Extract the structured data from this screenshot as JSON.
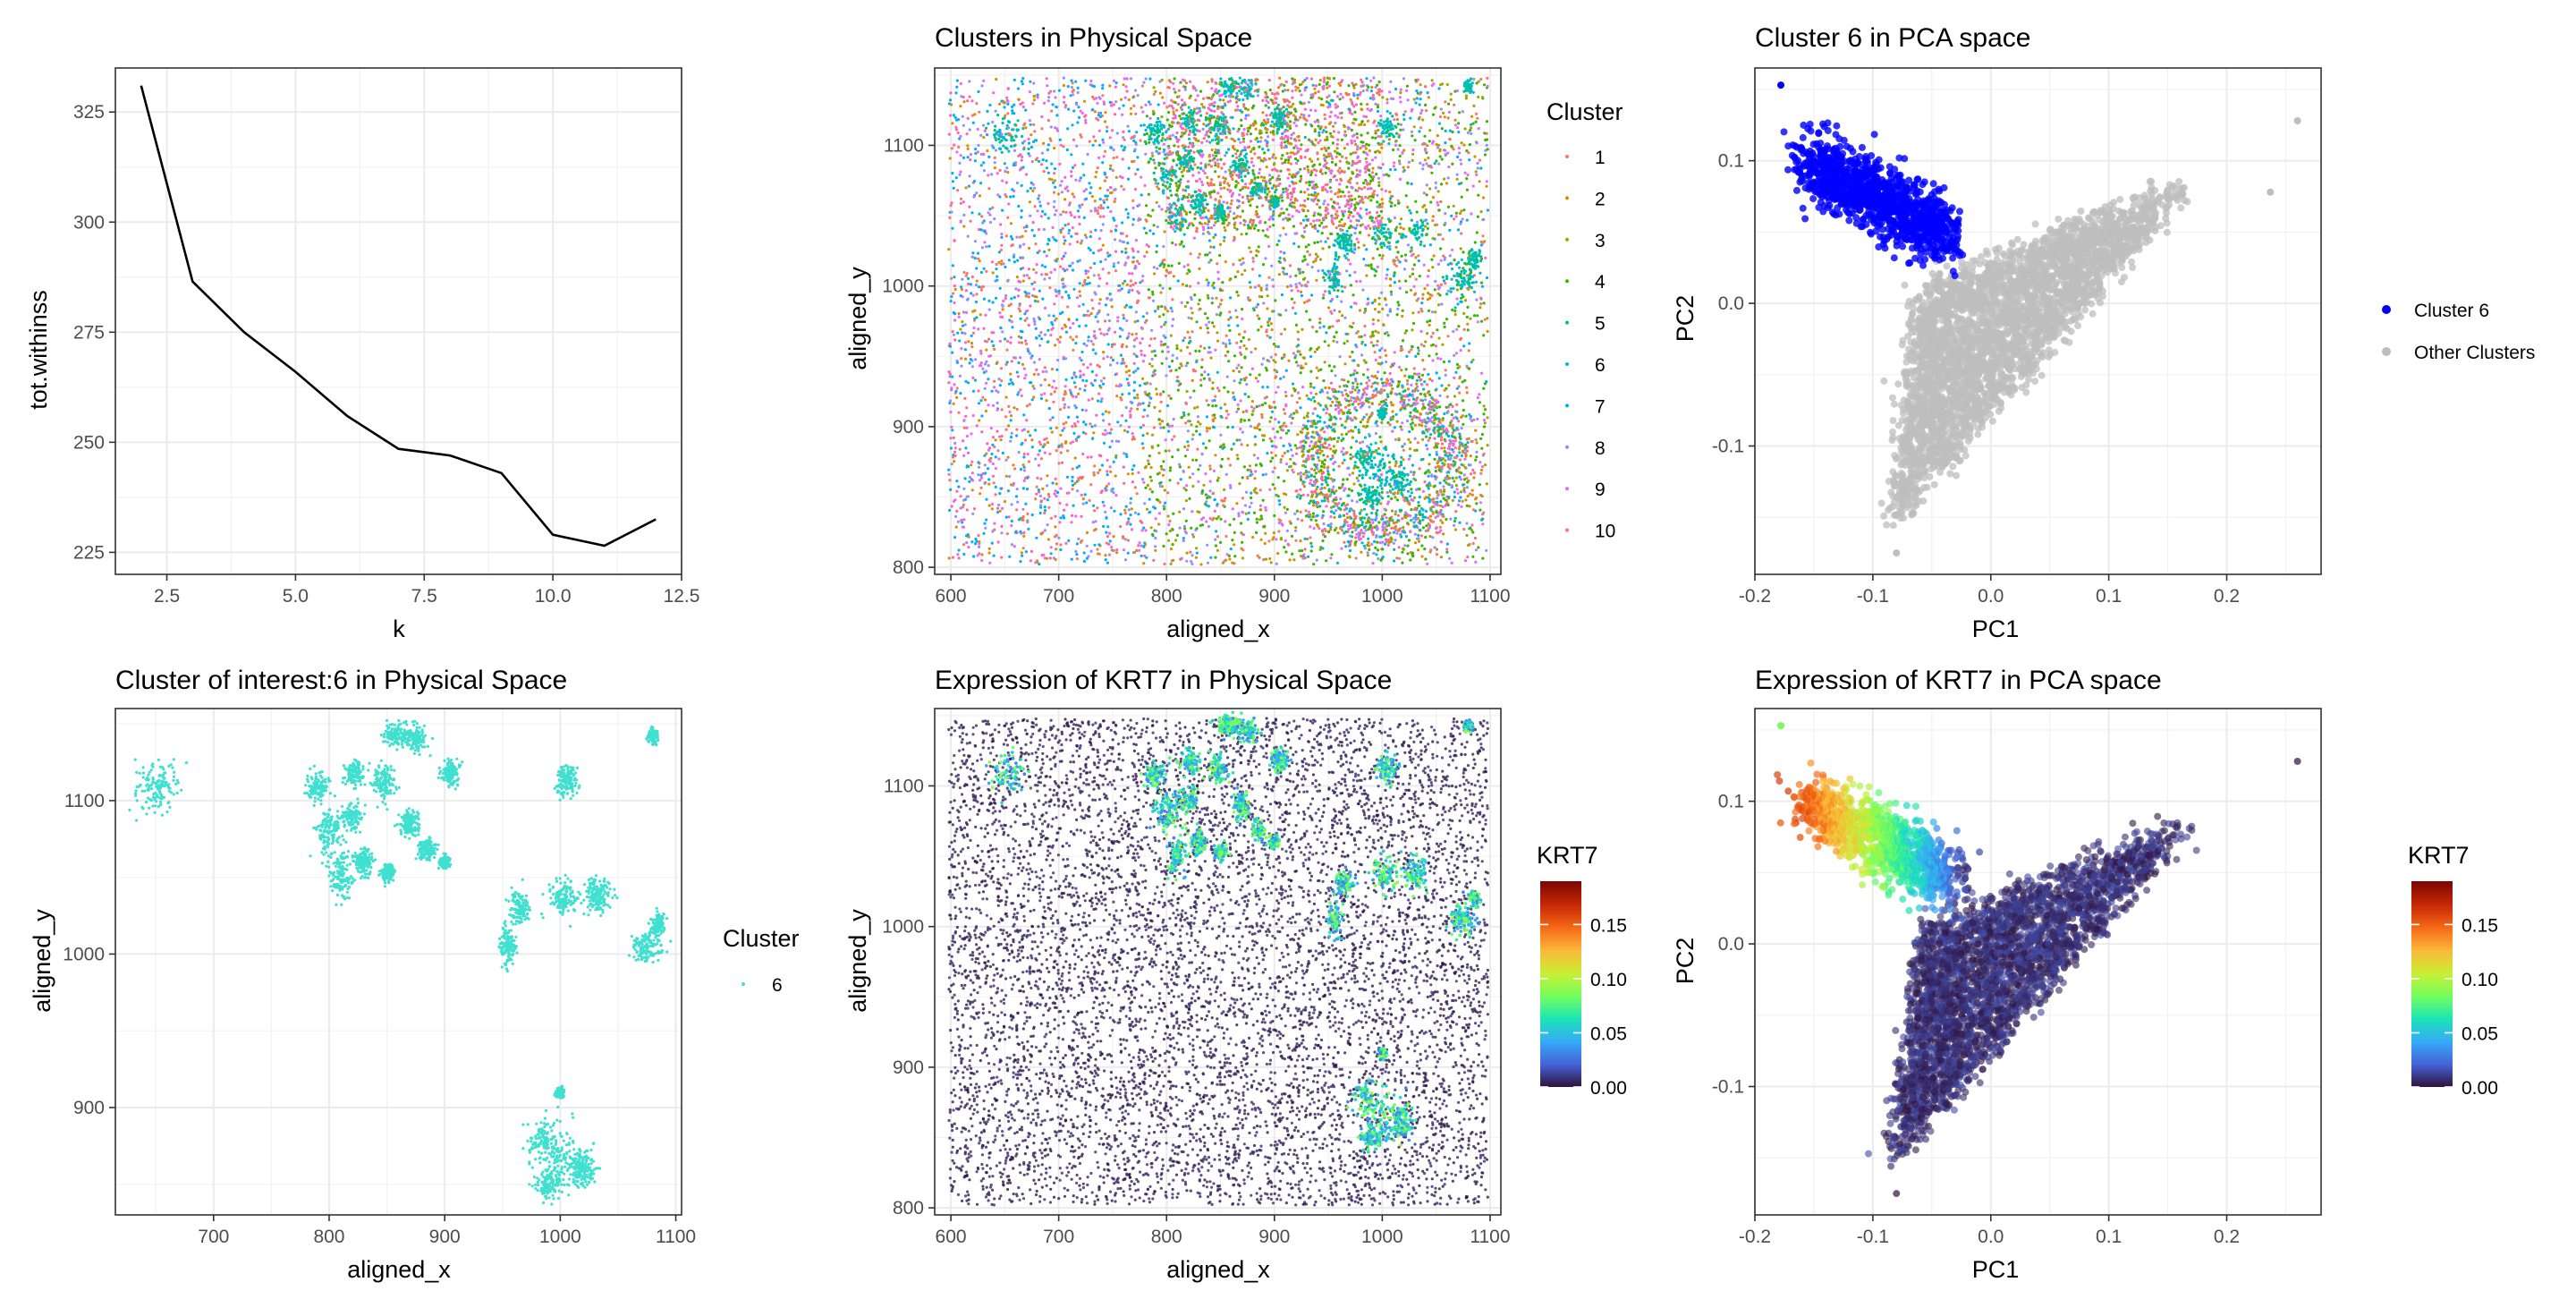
{
  "colors": {
    "cluster_palette": [
      "#F8766D",
      "#D89000",
      "#A3A500",
      "#39B600",
      "#00BF7D",
      "#00BFC4",
      "#00B0F6",
      "#9590FF",
      "#E76BF3",
      "#FF62BC"
    ],
    "cluster6": "#40E0D0",
    "highlight": "#0000FF",
    "other": "#BEBEBE",
    "turbo": [
      "#30123B",
      "#4662D7",
      "#36AAF9",
      "#1AE4B6",
      "#72FE5E",
      "#C7EF34",
      "#FABA39",
      "#F66B19",
      "#CA2A04",
      "#7A0403"
    ]
  },
  "chart_data": [
    {
      "type": "line",
      "title": "",
      "xlabel": "k",
      "ylabel": "tot.withinss",
      "xlim": [
        1.5,
        12.5
      ],
      "ylim": [
        220,
        335
      ],
      "xticks": [
        "2.5",
        "5.0",
        "7.5",
        "10.0",
        "12.5"
      ],
      "yticks": [
        "225",
        "250",
        "275",
        "300",
        "325"
      ],
      "x": [
        2,
        3,
        4,
        5,
        6,
        7,
        8,
        9,
        10,
        11,
        12
      ],
      "values": [
        331,
        286.5,
        275,
        266,
        256,
        248.5,
        247,
        243,
        229,
        226.5,
        232.5
      ]
    },
    {
      "type": "scatter",
      "title": "Clusters in Physical Space",
      "xlabel": "aligned_x",
      "ylabel": "aligned_y",
      "xlim": [
        585,
        1110
      ],
      "ylim": [
        795,
        1155
      ],
      "xticks": [
        "600",
        "700",
        "800",
        "900",
        "1000",
        "1100"
      ],
      "yticks": [
        "800",
        "900",
        "1000",
        "1100"
      ],
      "legend": {
        "title": "Cluster",
        "position": "right",
        "entries": [
          "1",
          "2",
          "3",
          "4",
          "5",
          "6",
          "7",
          "8",
          "9",
          "10"
        ]
      }
    },
    {
      "type": "scatter",
      "title": "Cluster 6 in PCA space",
      "xlabel": "PC1",
      "ylabel": "PC2",
      "xlim": [
        -0.2,
        0.28
      ],
      "ylim": [
        -0.19,
        0.165
      ],
      "xticks": [
        "-0.2",
        "-0.1",
        "0.0",
        "0.1",
        "0.2"
      ],
      "yticks": [
        "-0.1",
        "0.0",
        "0.1"
      ],
      "legend": {
        "position": "right",
        "entries": [
          "Cluster 6",
          "Other Clusters"
        ]
      }
    },
    {
      "type": "scatter",
      "title": "Cluster of interest:6 in Physical Space",
      "xlabel": "aligned_x",
      "ylabel": "aligned_y",
      "xlim": [
        615,
        1105
      ],
      "ylim": [
        830,
        1160
      ],
      "xticks": [
        "700",
        "800",
        "900",
        "1000",
        "1100"
      ],
      "yticks": [
        "900",
        "1000",
        "1100"
      ],
      "legend": {
        "title": "Cluster",
        "position": "right",
        "entries": [
          "6"
        ]
      }
    },
    {
      "type": "scatter",
      "title": "Expression of KRT7 in Physical Space",
      "xlabel": "aligned_x",
      "ylabel": "aligned_y",
      "xlim": [
        585,
        1110
      ],
      "ylim": [
        795,
        1155
      ],
      "xticks": [
        "600",
        "700",
        "800",
        "900",
        "1000",
        "1100"
      ],
      "yticks": [
        "800",
        "900",
        "1000",
        "1100"
      ],
      "colorbar": {
        "title": "KRT7",
        "range": [
          0,
          0.19
        ],
        "ticks": [
          "0.00",
          "0.05",
          "0.10",
          "0.15"
        ]
      }
    },
    {
      "type": "scatter",
      "title": "Expression of KRT7 in PCA space",
      "xlabel": "PC1",
      "ylabel": "PC2",
      "xlim": [
        -0.2,
        0.28
      ],
      "ylim": [
        -0.19,
        0.165
      ],
      "xticks": [
        "-0.2",
        "-0.1",
        "0.0",
        "0.1",
        "0.2"
      ],
      "yticks": [
        "-0.1",
        "0.0",
        "0.1"
      ],
      "colorbar": {
        "title": "KRT7",
        "range": [
          0,
          0.19
        ],
        "ticks": [
          "0.00",
          "0.05",
          "0.10",
          "0.15"
        ]
      }
    }
  ]
}
